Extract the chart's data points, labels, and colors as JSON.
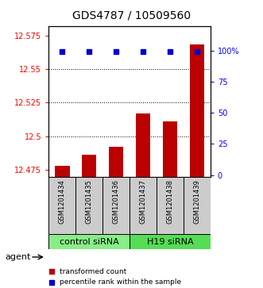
{
  "title": "GDS4787 / 10509560",
  "samples": [
    "GSM1201434",
    "GSM1201435",
    "GSM1201436",
    "GSM1201437",
    "GSM1201438",
    "GSM1201439"
  ],
  "bar_values": [
    12.478,
    12.486,
    12.492,
    12.517,
    12.511,
    12.568
  ],
  "ylim_left": [
    12.47,
    12.582
  ],
  "ylim_right": [
    -1.2,
    120
  ],
  "yticks_left": [
    12.475,
    12.5,
    12.525,
    12.55,
    12.575
  ],
  "ytick_labels_left": [
    "12.475",
    "12.5",
    "12.525",
    "12.55",
    "12.575"
  ],
  "yticks_right": [
    0,
    25,
    50,
    75,
    100
  ],
  "ytick_labels_right": [
    "0",
    "25",
    "50",
    "75",
    "100%"
  ],
  "bar_color": "#bb0000",
  "dot_color": "#0000cc",
  "bar_bottom": 12.47,
  "dot_percentile": 99.5,
  "groups": [
    {
      "label": "control siRNA",
      "indices": [
        0,
        1,
        2
      ],
      "color": "#88ee88"
    },
    {
      "label": "H19 siRNA",
      "indices": [
        3,
        4,
        5
      ],
      "color": "#55dd55"
    }
  ],
  "agent_label": "agent",
  "legend_bar_label": "transformed count",
  "legend_dot_label": "percentile rank within the sample",
  "title_fontsize": 10,
  "tick_fontsize": 7,
  "sample_fontsize": 6,
  "group_fontsize": 8,
  "bar_width": 0.55,
  "background_color": "#ffffff",
  "grid_linestyle": "dotted",
  "grid_ticks": [
    12.5,
    12.525,
    12.55
  ]
}
